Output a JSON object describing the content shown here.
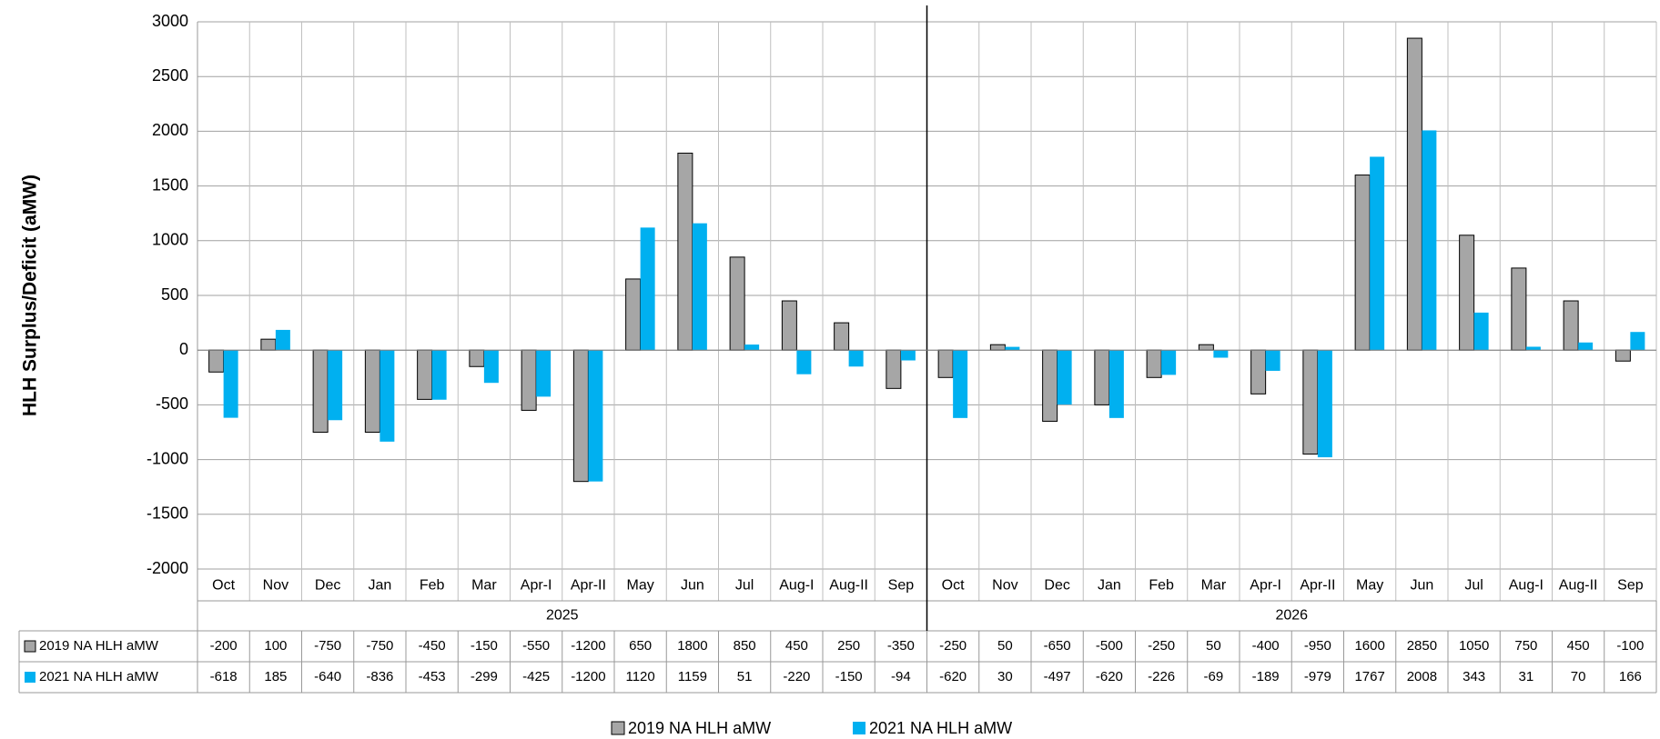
{
  "chart_data": {
    "type": "bar",
    "y_axis_label": "HLH Surplus/Deficit (aMW)",
    "categories": [
      "Oct",
      "Nov",
      "Dec",
      "Jan",
      "Feb",
      "Mar",
      "Apr-I",
      "Apr-II",
      "May",
      "Jun",
      "Jul",
      "Aug-I",
      "Aug-II",
      "Sep",
      "Oct",
      "Nov",
      "Dec",
      "Jan",
      "Feb",
      "Mar",
      "Apr-I",
      "Apr-II",
      "May",
      "Jun",
      "Jul",
      "Aug-I",
      "Aug-II",
      "Sep"
    ],
    "category_groups": [
      "2025",
      "2026"
    ],
    "series": [
      {
        "name": "2019 NA HLH aMW",
        "color": "#a6a6a6",
        "values": [
          -200,
          100,
          -750,
          -750,
          -450,
          -150,
          -550,
          -1200,
          650,
          1800,
          850,
          450,
          250,
          -350,
          -250,
          50,
          -650,
          -500,
          -250,
          50,
          -400,
          -950,
          1600,
          2850,
          1050,
          750,
          450,
          -100
        ]
      },
      {
        "name": "2021 NA HLH aMW",
        "color": "#00b0f0",
        "values": [
          -618,
          185,
          -640,
          -836,
          -453,
          -299,
          -425,
          -1200,
          1120,
          1159,
          51,
          -220,
          -150,
          -94,
          -620,
          30,
          -497,
          -620,
          -226,
          -69,
          -189,
          -979,
          1767,
          2008,
          343,
          31,
          70,
          166
        ]
      }
    ],
    "ylim": [
      -2000,
      3000
    ],
    "yticks": [
      -2000,
      -1500,
      -1000,
      -500,
      0,
      500,
      1000,
      1500,
      2000,
      2500,
      3000
    ],
    "grid": true
  }
}
